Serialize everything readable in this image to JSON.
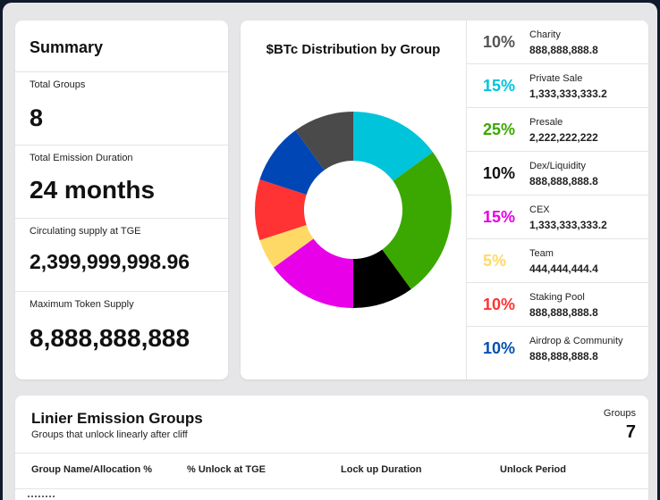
{
  "summary": {
    "title": "Summary",
    "stats": [
      {
        "label": "Total Groups",
        "value": "8"
      },
      {
        "label": "Total Emission Duration",
        "value": "24 months"
      },
      {
        "label": "Circulating supply at TGE",
        "value": "2,399,999,998.96"
      },
      {
        "label": "Maximum Token Supply",
        "value": "8,888,888,888"
      }
    ]
  },
  "distribution": {
    "title": "$BTc Distribution by Group",
    "chart_data": {
      "type": "pie",
      "categories": [
        "Charity",
        "Private Sale",
        "Presale",
        "Dex/Liquidity",
        "CEX",
        "Team",
        "Staking Pool",
        "Airdrop & Community"
      ],
      "values": [
        10,
        15,
        25,
        10,
        15,
        5,
        10,
        10
      ],
      "slice_order_clockwise_from_top": [
        "Private Sale",
        "Presale",
        "Dex/Liquidity",
        "CEX",
        "Team",
        "Staking Pool",
        "Airdrop & Community",
        "Charity"
      ]
    },
    "groups": [
      {
        "pct": "10%",
        "name": "Charity",
        "amount": "888,888,888.8",
        "color": "#555555",
        "slice": "#4a4a4a"
      },
      {
        "pct": "15%",
        "name": "Private Sale",
        "amount": "1,333,333,333.2",
        "color": "#00c4d9",
        "slice": "#00c4d9"
      },
      {
        "pct": "25%",
        "name": "Presale",
        "amount": "2,222,222,222",
        "color": "#3aa800",
        "slice": "#3aa800"
      },
      {
        "pct": "10%",
        "name": "Dex/Liquidity",
        "amount": "888,888,888.8",
        "color": "#111111",
        "slice": "#000000"
      },
      {
        "pct": "15%",
        "name": "CEX",
        "amount": "1,333,333,333.2",
        "color": "#e600e6",
        "slice": "#e800e8"
      },
      {
        "pct": "5%",
        "name": "Team",
        "amount": "444,444,444.4",
        "color": "#ffd966",
        "slice": "#ffd966"
      },
      {
        "pct": "10%",
        "name": "Staking Pool",
        "amount": "888,888,888.8",
        "color": "#ff3333",
        "slice": "#ff3333"
      },
      {
        "pct": "10%",
        "name": "Airdrop & Community",
        "amount": "888,888,888.8",
        "color": "#0050b3",
        "slice": "#0046b4"
      }
    ]
  },
  "linear": {
    "title": "Linier Emission Groups",
    "subtitle": "Groups that unlock linearly after cliff",
    "groups_label": "Groups",
    "groups_count": "7",
    "columns": [
      "Group Name/Allocation %",
      "% Unlock at TGE",
      "Lock up Duration",
      "Unlock Period"
    ]
  }
}
